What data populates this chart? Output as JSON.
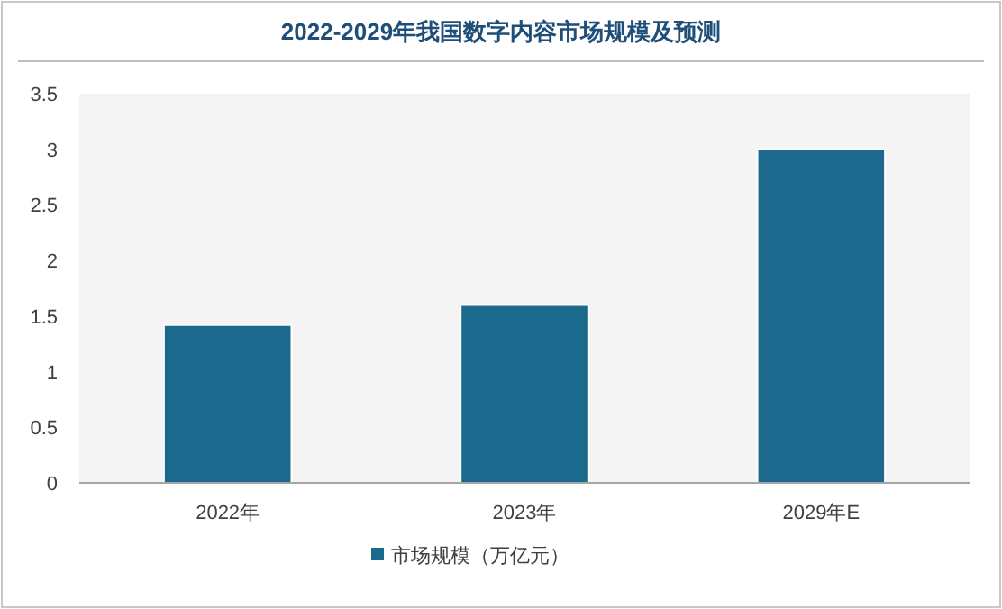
{
  "chart_data": {
    "type": "bar",
    "title": "2022-2029年我国数字内容市场规模及预测",
    "categories": [
      "2022年",
      "2023年",
      "2029年E"
    ],
    "series": [
      {
        "name": "市场规模（万亿元）",
        "color": "#1b6a8e",
        "values": [
          1.42,
          1.6,
          3.0
        ]
      }
    ],
    "ylim": [
      0,
      3.5
    ],
    "yticks": [
      0,
      0.5,
      1,
      1.5,
      2,
      2.5,
      3,
      3.5
    ],
    "legend": "bottom",
    "grid": false
  }
}
